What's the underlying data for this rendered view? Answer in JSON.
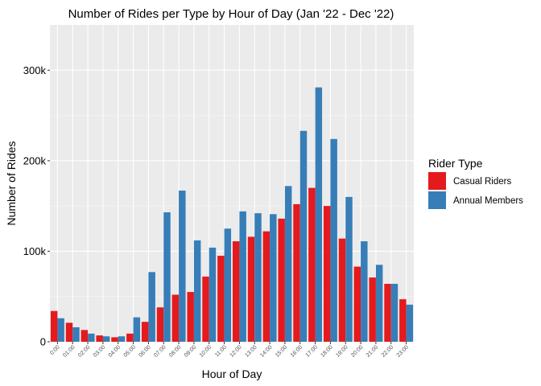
{
  "chart_data": {
    "type": "bar",
    "title": "Number of Rides per Type by Hour of Day  (Jan '22 - Dec '22)",
    "xlabel": "Hour of Day",
    "ylabel": "Number of Rides",
    "ylim": [
      0,
      350000
    ],
    "yticks": [
      {
        "value": 0,
        "label": "0"
      },
      {
        "value": 100000,
        "label": "100k"
      },
      {
        "value": 200000,
        "label": "200k"
      },
      {
        "value": 300000,
        "label": "300k"
      }
    ],
    "grid": true,
    "legend": {
      "title": "Rider Type",
      "position": "right"
    },
    "categories": [
      "0:00",
      "01:00",
      "02:00",
      "03:00",
      "04:00",
      "05:00",
      "06:00",
      "07:00",
      "08:00",
      "09:00",
      "10:00",
      "11:00",
      "12:00",
      "13:00",
      "14:00",
      "15:00",
      "16:00",
      "17:00",
      "18:00",
      "19:00",
      "20:00",
      "21:00",
      "22:00",
      "23:00"
    ],
    "series": [
      {
        "name": "Casual Riders",
        "color": "#E41A1C",
        "values": [
          34000,
          21000,
          13000,
          7000,
          5000,
          9000,
          22000,
          38000,
          52000,
          55000,
          72000,
          95000,
          111000,
          116000,
          122000,
          136000,
          152000,
          170000,
          150000,
          114000,
          83000,
          71000,
          64000,
          47000
        ]
      },
      {
        "name": "Annual Members",
        "color": "#377EB8",
        "values": [
          26000,
          16000,
          9000,
          6000,
          6000,
          27000,
          77000,
          143000,
          167000,
          112000,
          104000,
          125000,
          144000,
          142000,
          141000,
          172000,
          233000,
          281000,
          224000,
          160000,
          111000,
          85000,
          64000,
          41000
        ]
      }
    ]
  }
}
